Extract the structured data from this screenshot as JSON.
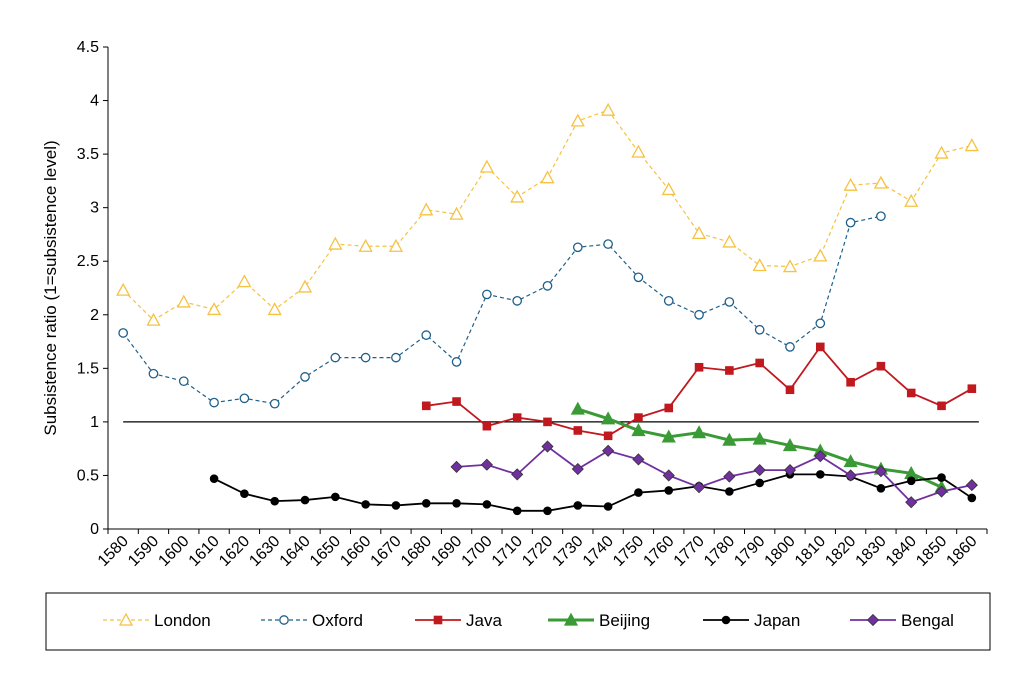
{
  "chart_data": {
    "type": "line",
    "title": "",
    "xlabel": "",
    "ylabel": "Subsistence ratio (1=subsistence level)",
    "ylim": [
      0,
      4.5
    ],
    "yticks": [
      "0",
      "0.5",
      "1",
      "1.5",
      "2",
      "2.5",
      "3",
      "3.5",
      "4",
      "4.5"
    ],
    "x": [
      1580,
      1590,
      1600,
      1610,
      1620,
      1630,
      1640,
      1650,
      1660,
      1670,
      1680,
      1690,
      1700,
      1710,
      1720,
      1730,
      1740,
      1750,
      1760,
      1770,
      1780,
      1790,
      1800,
      1810,
      1820,
      1830,
      1840,
      1850,
      1860
    ],
    "xticks": [
      "1580",
      "1590",
      "1600",
      "1610",
      "1620",
      "1630",
      "1640",
      "1650",
      "1660",
      "1670",
      "1680",
      "1690",
      "1700",
      "1710",
      "1720",
      "1730",
      "1740",
      "1750",
      "1760",
      "1770",
      "1780",
      "1790",
      "1800",
      "1810",
      "1820",
      "1830",
      "1840",
      "1850",
      "1860"
    ],
    "reference_line": 1,
    "legend_position": "bottom",
    "series": [
      {
        "name": "London",
        "color": "#f5c242",
        "style": "dashed",
        "marker": "triangle-open",
        "points": [
          [
            1580,
            2.23
          ],
          [
            1590,
            1.95
          ],
          [
            1600,
            2.12
          ],
          [
            1610,
            2.05
          ],
          [
            1620,
            2.31
          ],
          [
            1630,
            2.05
          ],
          [
            1640,
            2.26
          ],
          [
            1650,
            2.66
          ],
          [
            1660,
            2.64
          ],
          [
            1670,
            2.64
          ],
          [
            1680,
            2.98
          ],
          [
            1690,
            2.94
          ],
          [
            1700,
            3.38
          ],
          [
            1710,
            3.1
          ],
          [
            1720,
            3.28
          ],
          [
            1730,
            3.81
          ],
          [
            1740,
            3.91
          ],
          [
            1750,
            3.52
          ],
          [
            1760,
            3.17
          ],
          [
            1770,
            2.76
          ],
          [
            1780,
            2.68
          ],
          [
            1790,
            2.46
          ],
          [
            1800,
            2.45
          ],
          [
            1810,
            2.55
          ],
          [
            1820,
            3.21
          ],
          [
            1830,
            3.23
          ],
          [
            1840,
            3.06
          ],
          [
            1850,
            3.51
          ],
          [
            1860,
            3.58
          ]
        ]
      },
      {
        "name": "Oxford",
        "color": "#1f5f8b",
        "style": "dashed",
        "marker": "circle-open",
        "points": [
          [
            1580,
            1.83
          ],
          [
            1590,
            1.45
          ],
          [
            1600,
            1.38
          ],
          [
            1610,
            1.18
          ],
          [
            1620,
            1.22
          ],
          [
            1630,
            1.17
          ],
          [
            1640,
            1.42
          ],
          [
            1650,
            1.6
          ],
          [
            1660,
            1.6
          ],
          [
            1670,
            1.6
          ],
          [
            1680,
            1.81
          ],
          [
            1690,
            1.56
          ],
          [
            1700,
            2.19
          ],
          [
            1710,
            2.13
          ],
          [
            1720,
            2.27
          ],
          [
            1730,
            2.63
          ],
          [
            1740,
            2.66
          ],
          [
            1750,
            2.35
          ],
          [
            1760,
            2.13
          ],
          [
            1770,
            2.0
          ],
          [
            1780,
            2.12
          ],
          [
            1790,
            1.86
          ],
          [
            1800,
            1.7
          ],
          [
            1810,
            1.92
          ],
          [
            1820,
            2.86
          ],
          [
            1830,
            2.92
          ]
        ]
      },
      {
        "name": "Java",
        "color": "#c0191e",
        "style": "solid",
        "marker": "square",
        "points": [
          [
            1680,
            1.15
          ],
          [
            1690,
            1.19
          ],
          [
            1700,
            0.96
          ],
          [
            1710,
            1.04
          ],
          [
            1720,
            1.0
          ],
          [
            1730,
            0.92
          ],
          [
            1740,
            0.87
          ],
          [
            1750,
            1.04
          ],
          [
            1760,
            1.13
          ],
          [
            1770,
            1.51
          ],
          [
            1780,
            1.48
          ],
          [
            1790,
            1.55
          ],
          [
            1800,
            1.3
          ],
          [
            1810,
            1.7
          ],
          [
            1820,
            1.37
          ],
          [
            1830,
            1.52
          ],
          [
            1840,
            1.27
          ],
          [
            1850,
            1.15
          ],
          [
            1860,
            1.31
          ]
        ]
      },
      {
        "name": "Beijing",
        "color": "#3a9a35",
        "style": "solid-thick",
        "marker": "triangle",
        "points": [
          [
            1730,
            1.12
          ],
          [
            1740,
            1.03
          ],
          [
            1750,
            0.92
          ],
          [
            1760,
            0.86
          ],
          [
            1770,
            0.9
          ],
          [
            1780,
            0.83
          ],
          [
            1790,
            0.84
          ],
          [
            1800,
            0.78
          ],
          [
            1810,
            0.73
          ],
          [
            1820,
            0.63
          ],
          [
            1830,
            0.56
          ],
          [
            1840,
            0.52
          ],
          [
            1850,
            0.39
          ]
        ]
      },
      {
        "name": "Japan",
        "color": "#000000",
        "style": "solid",
        "marker": "circle",
        "points": [
          [
            1610,
            0.47
          ],
          [
            1620,
            0.33
          ],
          [
            1630,
            0.26
          ],
          [
            1640,
            0.27
          ],
          [
            1650,
            0.3
          ],
          [
            1660,
            0.23
          ],
          [
            1670,
            0.22
          ],
          [
            1680,
            0.24
          ],
          [
            1690,
            0.24
          ],
          [
            1700,
            0.23
          ],
          [
            1710,
            0.17
          ],
          [
            1720,
            0.17
          ],
          [
            1730,
            0.22
          ],
          [
            1740,
            0.21
          ],
          [
            1750,
            0.34
          ],
          [
            1760,
            0.36
          ],
          [
            1770,
            0.4
          ],
          [
            1780,
            0.35
          ],
          [
            1790,
            0.43
          ],
          [
            1800,
            0.51
          ],
          [
            1810,
            0.51
          ],
          [
            1820,
            0.49
          ],
          [
            1830,
            0.38
          ],
          [
            1840,
            0.45
          ],
          [
            1850,
            0.48
          ],
          [
            1860,
            0.29
          ]
        ]
      },
      {
        "name": "Bengal",
        "color": "#7030a0",
        "style": "solid",
        "marker": "diamond",
        "points": [
          [
            1690,
            0.58
          ],
          [
            1700,
            0.6
          ],
          [
            1710,
            0.51
          ],
          [
            1720,
            0.77
          ],
          [
            1730,
            0.56
          ],
          [
            1740,
            0.73
          ],
          [
            1750,
            0.65
          ],
          [
            1760,
            0.5
          ],
          [
            1770,
            0.39
          ],
          [
            1780,
            0.49
          ],
          [
            1790,
            0.55
          ],
          [
            1800,
            0.55
          ],
          [
            1810,
            0.68
          ],
          [
            1820,
            0.5
          ],
          [
            1830,
            0.54
          ],
          [
            1840,
            0.25
          ],
          [
            1850,
            0.35
          ],
          [
            1860,
            0.41
          ]
        ]
      }
    ]
  }
}
